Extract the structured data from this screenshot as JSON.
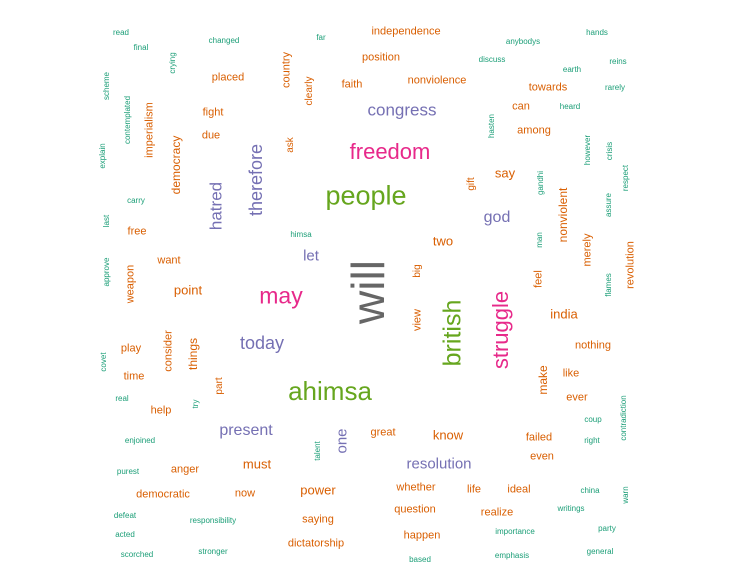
{
  "colors": {
    "green": "#1b9e77",
    "orange": "#d95f02",
    "purple": "#7570b3",
    "pink": "#e7298a",
    "lime": "#66a61e",
    "gray": "#666666"
  },
  "words": [
    {
      "text": "will",
      "color": "#666666"
    },
    {
      "text": "ahimsa",
      "color": "#66a61e"
    },
    {
      "text": "people",
      "color": "#66a61e"
    },
    {
      "text": "british",
      "color": "#66a61e"
    },
    {
      "text": "struggle",
      "color": "#e7298a"
    },
    {
      "text": "freedom",
      "color": "#e7298a"
    },
    {
      "text": "may",
      "color": "#e7298a"
    },
    {
      "text": "therefore",
      "color": "#7570b3"
    },
    {
      "text": "hatred",
      "color": "#7570b3"
    },
    {
      "text": "congress",
      "color": "#7570b3"
    },
    {
      "text": "today",
      "color": "#7570b3"
    },
    {
      "text": "present",
      "color": "#7570b3"
    },
    {
      "text": "resolution",
      "color": "#7570b3"
    },
    {
      "text": "god",
      "color": "#7570b3"
    },
    {
      "text": "let",
      "color": "#7570b3"
    },
    {
      "text": "one",
      "color": "#7570b3"
    },
    {
      "text": "independence",
      "color": "#d95f02"
    },
    {
      "text": "position",
      "color": "#d95f02"
    },
    {
      "text": "nonviolence",
      "color": "#d95f02"
    },
    {
      "text": "faith",
      "color": "#d95f02"
    },
    {
      "text": "placed",
      "color": "#d95f02"
    },
    {
      "text": "country",
      "color": "#d95f02"
    },
    {
      "text": "clearly",
      "color": "#d95f02"
    },
    {
      "text": "fight",
      "color": "#d95f02"
    },
    {
      "text": "due",
      "color": "#d95f02"
    },
    {
      "text": "ask",
      "color": "#d95f02"
    },
    {
      "text": "imperialism",
      "color": "#d95f02"
    },
    {
      "text": "democracy",
      "color": "#d95f02"
    },
    {
      "text": "towards",
      "color": "#d95f02"
    },
    {
      "text": "can",
      "color": "#d95f02"
    },
    {
      "text": "among",
      "color": "#d95f02"
    },
    {
      "text": "say",
      "color": "#d95f02"
    },
    {
      "text": "gift",
      "color": "#d95f02"
    },
    {
      "text": "nonviolent",
      "color": "#d95f02"
    },
    {
      "text": "merely",
      "color": "#d95f02"
    },
    {
      "text": "revolution",
      "color": "#d95f02"
    },
    {
      "text": "two",
      "color": "#d95f02"
    },
    {
      "text": "free",
      "color": "#d95f02"
    },
    {
      "text": "want",
      "color": "#d95f02"
    },
    {
      "text": "weapon",
      "color": "#d95f02"
    },
    {
      "text": "point",
      "color": "#d95f02"
    },
    {
      "text": "big",
      "color": "#d95f02"
    },
    {
      "text": "view",
      "color": "#d95f02"
    },
    {
      "text": "feel",
      "color": "#d95f02"
    },
    {
      "text": "india",
      "color": "#d95f02"
    },
    {
      "text": "nothing",
      "color": "#d95f02"
    },
    {
      "text": "make",
      "color": "#d95f02"
    },
    {
      "text": "like",
      "color": "#d95f02"
    },
    {
      "text": "ever",
      "color": "#d95f02"
    },
    {
      "text": "play",
      "color": "#d95f02"
    },
    {
      "text": "consider",
      "color": "#d95f02"
    },
    {
      "text": "things",
      "color": "#d95f02"
    },
    {
      "text": "time",
      "color": "#d95f02"
    },
    {
      "text": "part",
      "color": "#d95f02"
    },
    {
      "text": "help",
      "color": "#d95f02"
    },
    {
      "text": "great",
      "color": "#d95f02"
    },
    {
      "text": "know",
      "color": "#d95f02"
    },
    {
      "text": "failed",
      "color": "#d95f02"
    },
    {
      "text": "even",
      "color": "#d95f02"
    },
    {
      "text": "must",
      "color": "#d95f02"
    },
    {
      "text": "anger",
      "color": "#d95f02"
    },
    {
      "text": "democratic",
      "color": "#d95f02"
    },
    {
      "text": "now",
      "color": "#d95f02"
    },
    {
      "text": "power",
      "color": "#d95f02"
    },
    {
      "text": "whether",
      "color": "#d95f02"
    },
    {
      "text": "life",
      "color": "#d95f02"
    },
    {
      "text": "ideal",
      "color": "#d95f02"
    },
    {
      "text": "question",
      "color": "#d95f02"
    },
    {
      "text": "realize",
      "color": "#d95f02"
    },
    {
      "text": "saying",
      "color": "#d95f02"
    },
    {
      "text": "happen",
      "color": "#d95f02"
    },
    {
      "text": "dictatorship",
      "color": "#d95f02"
    },
    {
      "text": "read",
      "color": "#1b9e77"
    },
    {
      "text": "final",
      "color": "#1b9e77"
    },
    {
      "text": "crying",
      "color": "#1b9e77"
    },
    {
      "text": "changed",
      "color": "#1b9e77"
    },
    {
      "text": "far",
      "color": "#1b9e77"
    },
    {
      "text": "anybodys",
      "color": "#1b9e77"
    },
    {
      "text": "hands",
      "color": "#1b9e77"
    },
    {
      "text": "discuss",
      "color": "#1b9e77"
    },
    {
      "text": "reins",
      "color": "#1b9e77"
    },
    {
      "text": "earth",
      "color": "#1b9e77"
    },
    {
      "text": "rarely",
      "color": "#1b9e77"
    },
    {
      "text": "scheme",
      "color": "#1b9e77"
    },
    {
      "text": "contemplated",
      "color": "#1b9e77"
    },
    {
      "text": "heard",
      "color": "#1b9e77"
    },
    {
      "text": "hasten",
      "color": "#1b9e77"
    },
    {
      "text": "explain",
      "color": "#1b9e77"
    },
    {
      "text": "however",
      "color": "#1b9e77"
    },
    {
      "text": "crisis",
      "color": "#1b9e77"
    },
    {
      "text": "respect",
      "color": "#1b9e77"
    },
    {
      "text": "carry",
      "color": "#1b9e77"
    },
    {
      "text": "gandhi",
      "color": "#1b9e77"
    },
    {
      "text": "assure",
      "color": "#1b9e77"
    },
    {
      "text": "last",
      "color": "#1b9e77"
    },
    {
      "text": "himsa",
      "color": "#1b9e77"
    },
    {
      "text": "man",
      "color": "#1b9e77"
    },
    {
      "text": "approve",
      "color": "#1b9e77"
    },
    {
      "text": "flames",
      "color": "#1b9e77"
    },
    {
      "text": "covet",
      "color": "#1b9e77"
    },
    {
      "text": "real",
      "color": "#1b9e77"
    },
    {
      "text": "try",
      "color": "#1b9e77"
    },
    {
      "text": "coup",
      "color": "#1b9e77"
    },
    {
      "text": "contradiction",
      "color": "#1b9e77"
    },
    {
      "text": "enjoined",
      "color": "#1b9e77"
    },
    {
      "text": "talent",
      "color": "#1b9e77"
    },
    {
      "text": "right",
      "color": "#1b9e77"
    },
    {
      "text": "purest",
      "color": "#1b9e77"
    },
    {
      "text": "china",
      "color": "#1b9e77"
    },
    {
      "text": "warn",
      "color": "#1b9e77"
    },
    {
      "text": "defeat",
      "color": "#1b9e77"
    },
    {
      "text": "responsibility",
      "color": "#1b9e77"
    },
    {
      "text": "writings",
      "color": "#1b9e77"
    },
    {
      "text": "acted",
      "color": "#1b9e77"
    },
    {
      "text": "importance",
      "color": "#1b9e77"
    },
    {
      "text": "party",
      "color": "#1b9e77"
    },
    {
      "text": "scorched",
      "color": "#1b9e77"
    },
    {
      "text": "stronger",
      "color": "#1b9e77"
    },
    {
      "text": "based",
      "color": "#1b9e77"
    },
    {
      "text": "emphasis",
      "color": "#1b9e77"
    },
    {
      "text": "general",
      "color": "#1b9e77"
    }
  ]
}
